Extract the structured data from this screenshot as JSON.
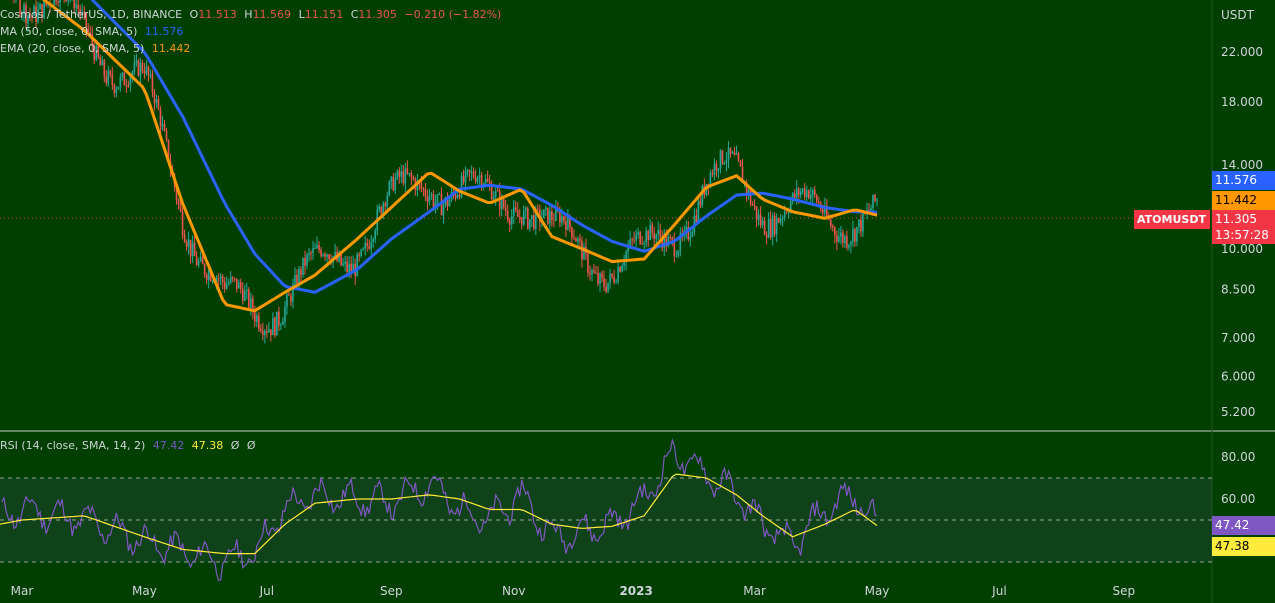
{
  "main_legend": {
    "symbol": "Cosmos / TetherUS, 1D, BINANCE",
    "o_label": "O",
    "o_value": "11.513",
    "h_label": "H",
    "h_value": "11.569",
    "l_label": "L",
    "l_value": "11.151",
    "c_label": "C",
    "c_value": "11.305",
    "change": "−0.210 (−1.82%)",
    "ma_label": "MA (50, close, 0, SMA, 5)",
    "ma_value": "11.576",
    "ema_label": "EMA (20, close, 0, SMA, 5)",
    "ema_value": "11.442"
  },
  "rsi_legend": {
    "label": "RSI (14, close, SMA, 14, 2)",
    "rsi_value": "47.42",
    "sma_value": "47.38",
    "extra1": "Ø",
    "extra2": "Ø"
  },
  "axis": {
    "currency": "USDT",
    "price_ticks": [
      "22.000",
      "18.000",
      "14.000",
      "10.000",
      "8.500",
      "7.000",
      "6.000",
      "5.200"
    ],
    "rsi_ticks": [
      "80.00",
      "60.00"
    ],
    "time_ticks": [
      "Mar",
      "May",
      "Jul",
      "Sep",
      "Nov",
      "2023",
      "Mar",
      "May",
      "Jul",
      "Sep"
    ]
  },
  "price_tags": {
    "ma": "11.576",
    "ema": "11.442",
    "symbol": "ATOMUSDT",
    "close": "11.305",
    "countdown": "13:57:28"
  },
  "rsi_tags": {
    "rsi": "47.42",
    "sma": "47.38"
  },
  "colors": {
    "background": "#013f00",
    "up": "#26a69a",
    "down": "#ef5350",
    "ma": "#2962ff",
    "ema": "#ff9800",
    "rsi": "#7e57c2",
    "rsi_sma": "#ffeb3b",
    "price_tag": "#f23645"
  },
  "chart_data": {
    "type": "line",
    "series": [
      {
        "name": "MA (50, close, 0, SMA, 5)",
        "x": [
          "2022-02-01",
          "2022-03-01",
          "2022-04-01",
          "2022-05-01",
          "2022-05-20",
          "2022-06-10",
          "2022-06-25",
          "2022-07-10",
          "2022-07-25",
          "2022-08-15",
          "2022-09-01",
          "2022-09-20",
          "2022-10-05",
          "2022-10-20",
          "2022-11-05",
          "2022-11-20",
          "2022-12-05",
          "2022-12-20",
          "2023-01-05",
          "2023-01-20",
          "2023-02-05",
          "2023-02-20",
          "2023-03-05",
          "2023-03-20",
          "2023-04-05",
          "2023-04-20",
          "2023-05-01"
        ],
        "values": [
          40,
          34,
          28,
          22,
          17,
          12,
          9.8,
          8.6,
          8.4,
          9.2,
          10.4,
          11.6,
          12.7,
          12.9,
          12.7,
          11.9,
          11.0,
          10.3,
          9.9,
          10.3,
          11.4,
          12.4,
          12.5,
          12.2,
          11.8,
          11.6,
          11.576
        ]
      },
      {
        "name": "EMA (20, close, 0, SMA, 5)",
        "x": [
          "2022-02-01",
          "2022-03-01",
          "2022-04-01",
          "2022-05-01",
          "2022-05-20",
          "2022-06-10",
          "2022-06-25",
          "2022-07-10",
          "2022-07-25",
          "2022-08-15",
          "2022-09-01",
          "2022-09-20",
          "2022-10-05",
          "2022-10-20",
          "2022-11-05",
          "2022-11-20",
          "2022-12-05",
          "2022-12-20",
          "2023-01-05",
          "2023-01-20",
          "2023-02-05",
          "2023-02-20",
          "2023-03-05",
          "2023-03-20",
          "2023-04-05",
          "2023-04-20",
          "2023-05-01"
        ],
        "values": [
          34,
          29,
          24,
          19,
          12,
          8.0,
          7.8,
          8.4,
          9.0,
          10.4,
          11.8,
          13.6,
          12.6,
          12.0,
          12.7,
          10.5,
          10.0,
          9.5,
          9.6,
          11.0,
          12.8,
          13.4,
          12.2,
          11.6,
          11.3,
          11.7,
          11.442
        ]
      }
    ],
    "rsi_series": [
      {
        "name": "RSI",
        "x": [
          "2022-02-01",
          "2022-03-01",
          "2022-04-01",
          "2022-05-01",
          "2022-05-20",
          "2022-06-10",
          "2022-06-25",
          "2022-07-10",
          "2022-07-25",
          "2022-08-15",
          "2022-09-01",
          "2022-09-20",
          "2022-10-05",
          "2022-10-20",
          "2022-11-05",
          "2022-11-20",
          "2022-12-05",
          "2022-12-20",
          "2023-01-05",
          "2023-01-20",
          "2023-02-05",
          "2023-02-20",
          "2023-03-05",
          "2023-03-20",
          "2023-04-05",
          "2023-04-20",
          "2023-05-01"
        ],
        "values": [
          45,
          55,
          50,
          40,
          35,
          30,
          35,
          55,
          62,
          60,
          58,
          68,
          55,
          50,
          62,
          42,
          45,
          48,
          60,
          82,
          72,
          62,
          48,
          38,
          55,
          62,
          47.42
        ]
      },
      {
        "name": "RSI SMA",
        "x": [
          "2022-02-01",
          "2022-03-01",
          "2022-04-01",
          "2022-05-01",
          "2022-05-20",
          "2022-06-10",
          "2022-06-25",
          "2022-07-10",
          "2022-07-25",
          "2022-08-15",
          "2022-09-01",
          "2022-09-20",
          "2022-10-05",
          "2022-10-20",
          "2022-11-05",
          "2022-11-20",
          "2022-12-05",
          "2022-12-20",
          "2023-01-05",
          "2023-01-20",
          "2023-02-05",
          "2023-02-20",
          "2023-03-05",
          "2023-03-20",
          "2023-04-05",
          "2023-04-20",
          "2023-05-01"
        ],
        "values": [
          45,
          50,
          52,
          42,
          36,
          34,
          34,
          48,
          58,
          60,
          60,
          62,
          60,
          55,
          55,
          48,
          46,
          47,
          52,
          72,
          70,
          62,
          52,
          42,
          48,
          55,
          47.38
        ]
      }
    ],
    "price_axis": {
      "log": true,
      "ticks": [
        22,
        18,
        14,
        10,
        8.5,
        7,
        6,
        5.2
      ]
    },
    "rsi_bands": [
      30,
      50,
      70
    ],
    "last_close": 11.305,
    "grid": false
  }
}
